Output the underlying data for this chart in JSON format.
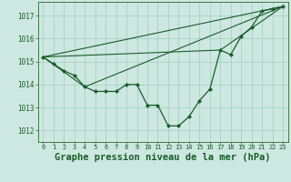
{
  "background_color": "#cce8e0",
  "grid_color": "#aacfc8",
  "line_color": "#1a5c2a",
  "marker_color": "#1a5c2a",
  "title": "Graphe pression niveau de la mer (hPa)",
  "title_fontsize": 7.5,
  "xlim": [
    -0.5,
    23.5
  ],
  "ylim": [
    1011.5,
    1017.6
  ],
  "yticks": [
    1012,
    1013,
    1014,
    1015,
    1016,
    1017
  ],
  "xticks": [
    0,
    1,
    2,
    3,
    4,
    5,
    6,
    7,
    8,
    9,
    10,
    11,
    12,
    13,
    14,
    15,
    16,
    17,
    18,
    19,
    20,
    21,
    22,
    23
  ],
  "series1_x": [
    0,
    1,
    2,
    3,
    4,
    5,
    6,
    7,
    8,
    9,
    10,
    11,
    12,
    13,
    14,
    15,
    16,
    17,
    18,
    19,
    20,
    21,
    22,
    23
  ],
  "series1_y": [
    1015.2,
    1014.9,
    1014.6,
    1014.4,
    1013.9,
    1013.7,
    1013.7,
    1013.7,
    1014.0,
    1014.0,
    1013.1,
    1013.1,
    1012.2,
    1012.2,
    1012.6,
    1013.3,
    1013.8,
    1015.5,
    1015.3,
    1016.1,
    1016.5,
    1017.2,
    1017.3,
    1017.4
  ],
  "series2_x": [
    0,
    23
  ],
  "series2_y": [
    1015.2,
    1017.4
  ],
  "series3_x": [
    0,
    17,
    23
  ],
  "series3_y": [
    1015.2,
    1015.5,
    1017.4
  ],
  "series4_x": [
    0,
    4,
    23
  ],
  "series4_y": [
    1015.2,
    1013.9,
    1017.4
  ]
}
